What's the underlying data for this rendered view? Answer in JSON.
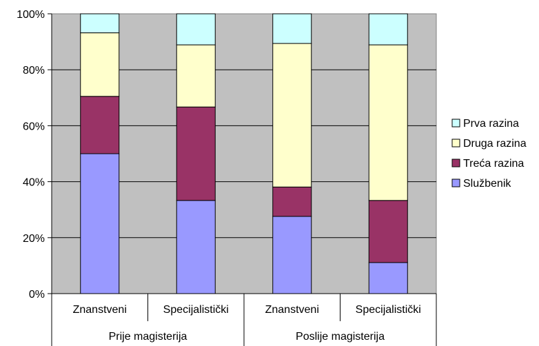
{
  "chart_data": {
    "type": "bar",
    "stacked": true,
    "percent": true,
    "categories": [
      "Znanstveni",
      "Specijalistički",
      "Znanstveni",
      "Specijalistički"
    ],
    "groups": [
      {
        "label": "Prije magisterija",
        "span": [
          0,
          1
        ]
      },
      {
        "label": "Poslije magisterija",
        "span": [
          2,
          3
        ]
      }
    ],
    "series": [
      {
        "name": "Službenik",
        "color": "#9999ff",
        "values": [
          50,
          33.3,
          27.6,
          11.1
        ]
      },
      {
        "name": "Treća razina",
        "color": "#993366",
        "values": [
          20.5,
          33.4,
          10.5,
          22.2
        ]
      },
      {
        "name": "Druga razina",
        "color": "#ffffcc",
        "values": [
          22.7,
          22.2,
          51.3,
          55.6
        ]
      },
      {
        "name": "Prva razina",
        "color": "#ccffff",
        "values": [
          6.8,
          11.1,
          10.6,
          11.1
        ]
      }
    ],
    "legend_order": [
      "Prva razina",
      "Druga razina",
      "Treća razina",
      "Službenik"
    ],
    "y_ticks": [
      "0%",
      "20%",
      "40%",
      "60%",
      "80%",
      "100%"
    ],
    "ylim": [
      0,
      100
    ],
    "grid": true,
    "plot_background": "#c0c0c0",
    "legend_position": "right"
  }
}
